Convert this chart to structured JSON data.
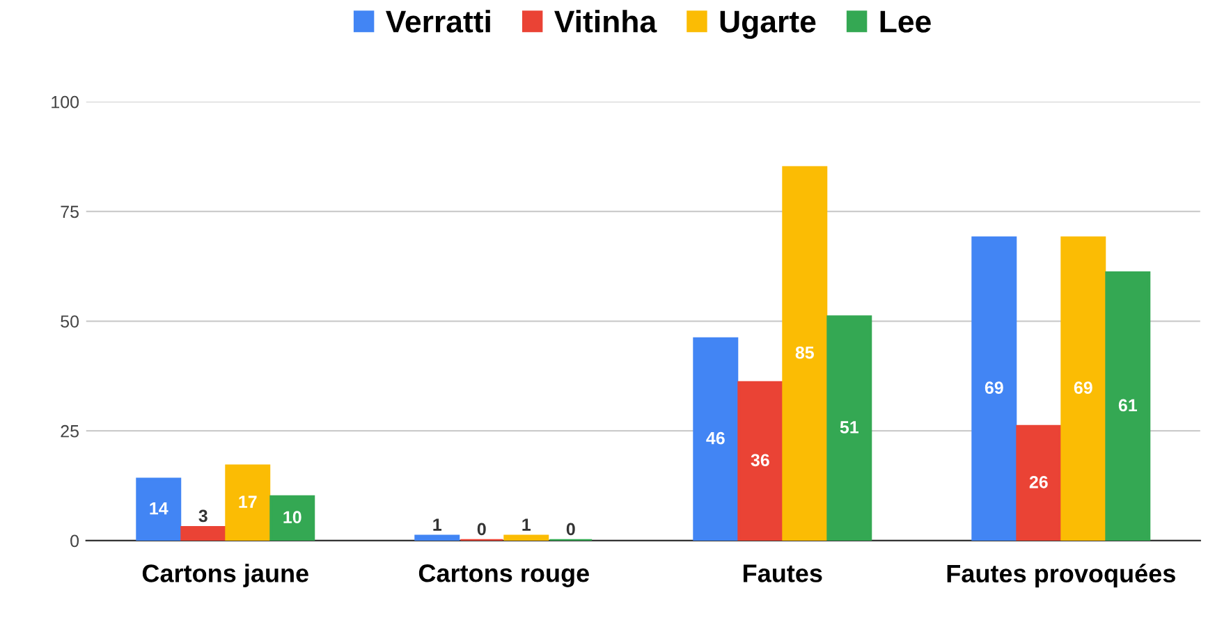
{
  "chart_data": {
    "type": "bar",
    "categories": [
      "Cartons jaune",
      "Cartons rouge",
      "Fautes",
      "Fautes provoquées"
    ],
    "series": [
      {
        "name": "Verratti",
        "color": "#4285f4",
        "values": [
          14,
          1,
          46,
          69
        ]
      },
      {
        "name": "Vitinha",
        "color": "#ea4335",
        "values": [
          3,
          0,
          36,
          26
        ]
      },
      {
        "name": "Ugarte",
        "color": "#fbbc04",
        "values": [
          17,
          1,
          85,
          69
        ]
      },
      {
        "name": "Lee",
        "color": "#34a853",
        "values": [
          10,
          0,
          51,
          61
        ]
      }
    ],
    "ylim": [
      0,
      100
    ],
    "yticks": [
      0,
      25,
      50,
      75,
      100
    ],
    "grid": "y",
    "legend": "top",
    "data_labels": true
  }
}
